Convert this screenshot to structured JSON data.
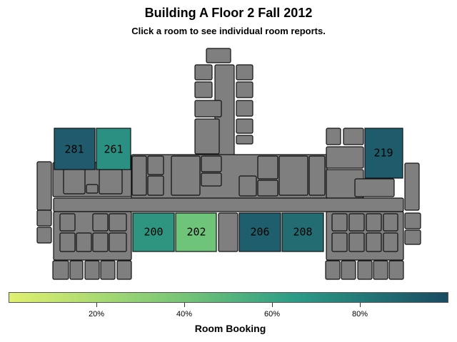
{
  "header": {
    "title": "Building A Floor 2 Fall 2012",
    "subtitle": "Click a room to see individual room reports."
  },
  "map": {
    "rooms": [
      {
        "label": "281",
        "booking": 0.9
      },
      {
        "label": "261",
        "booking": 0.68
      },
      {
        "label": "219",
        "booking": 0.93
      },
      {
        "label": "200",
        "booking": 0.66
      },
      {
        "label": "202",
        "booking": 0.4
      },
      {
        "label": "206",
        "booking": 0.93
      },
      {
        "label": "208",
        "booking": 0.88
      }
    ]
  },
  "legend": {
    "title": "Room Booking",
    "ticks": [
      "20%",
      "40%",
      "60%",
      "80%"
    ],
    "colors": {
      "low": "#e0f06f",
      "mid_low": "#74c476",
      "mid": "#2c9c87",
      "high": "#1a4b62"
    }
  },
  "colors": {
    "unbooked_room": "#7f7f7f",
    "outline": "#111111"
  }
}
